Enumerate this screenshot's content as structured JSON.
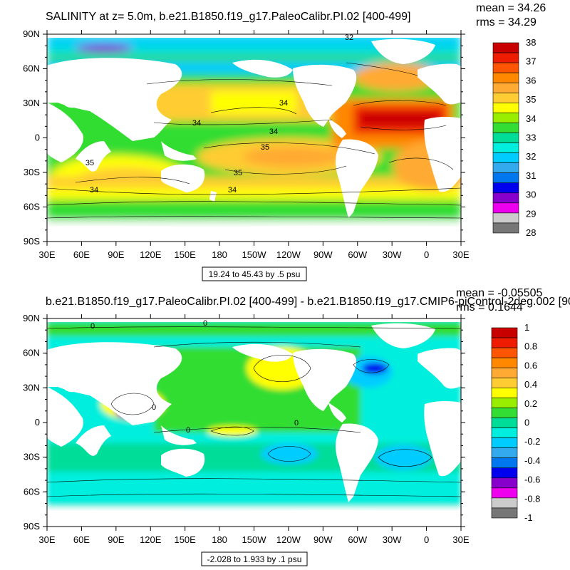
{
  "chart_data": [
    {
      "type": "heatmap",
      "title": "SALINITY at z=   5.0m, b.e21.B1850.f19_g17.PaleoCalibr.PI.02 [400-499]",
      "stats": {
        "mean": "mean = 34.26",
        "rms": "rms = 34.29"
      },
      "range_note": "19.24 to 45.43 by .5 psu",
      "x_ticks": [
        "30E",
        "60E",
        "90E",
        "120E",
        "150E",
        "180",
        "150W",
        "120W",
        "90W",
        "60W",
        "30W",
        "0",
        "30E"
      ],
      "y_ticks": [
        "90N",
        "60N",
        "30N",
        "0",
        "30S",
        "60S",
        "90S"
      ],
      "colorbar": {
        "labels": [
          "38",
          "37",
          "36",
          "35",
          "34",
          "33",
          "32",
          "31",
          "30",
          "29",
          "28"
        ],
        "colors": [
          "#c80000",
          "#ee1c00",
          "#ff5500",
          "#ff8800",
          "#ffaa33",
          "#ffcc33",
          "#ffff00",
          "#99ee00",
          "#33dd33",
          "#00dd99",
          "#00eedd",
          "#00ccff",
          "#33aaee",
          "#0077ee",
          "#0000ee",
          "#8800cc",
          "#ee00ee",
          "#cccccc",
          "#777777"
        ]
      },
      "contour_labels": [
        "32",
        "34",
        "34",
        "34",
        "35",
        "35",
        "35",
        "34",
        "34"
      ]
    },
    {
      "type": "heatmap",
      "title": "b.e21.B1850.f19_g17.PaleoCalibr.PI.02 [400-499] - b.e21.B1850.f19_g17.CMIP6-piControl-2deg.002 [90",
      "stats": {
        "mean": "mean = -0.05505",
        "rms": "rms = 0.1644"
      },
      "range_note": "-2.028 to 1.933 by .1 psu",
      "x_ticks": [
        "30E",
        "60E",
        "90E",
        "120E",
        "150E",
        "180",
        "150W",
        "120W",
        "90W",
        "60W",
        "30W",
        "0",
        "30E"
      ],
      "y_ticks": [
        "90N",
        "60N",
        "30N",
        "0",
        "30S",
        "60S",
        "90S"
      ],
      "colorbar": {
        "labels": [
          "1",
          "0.8",
          "0.6",
          "0.4",
          "0.2",
          "0",
          "-0.2",
          "-0.4",
          "-0.6",
          "-0.8",
          "-1"
        ],
        "colors": [
          "#c80000",
          "#ee1c00",
          "#ff5500",
          "#ff8800",
          "#ffaa33",
          "#ffcc33",
          "#ffff00",
          "#99ee00",
          "#33dd33",
          "#00dd99",
          "#00eedd",
          "#00ccff",
          "#33aaee",
          "#0077ee",
          "#0000ee",
          "#8800cc",
          "#ee00ee",
          "#cccccc",
          "#777777"
        ]
      },
      "contour_labels": [
        "0",
        "0",
        "0",
        "0",
        "0"
      ]
    }
  ]
}
